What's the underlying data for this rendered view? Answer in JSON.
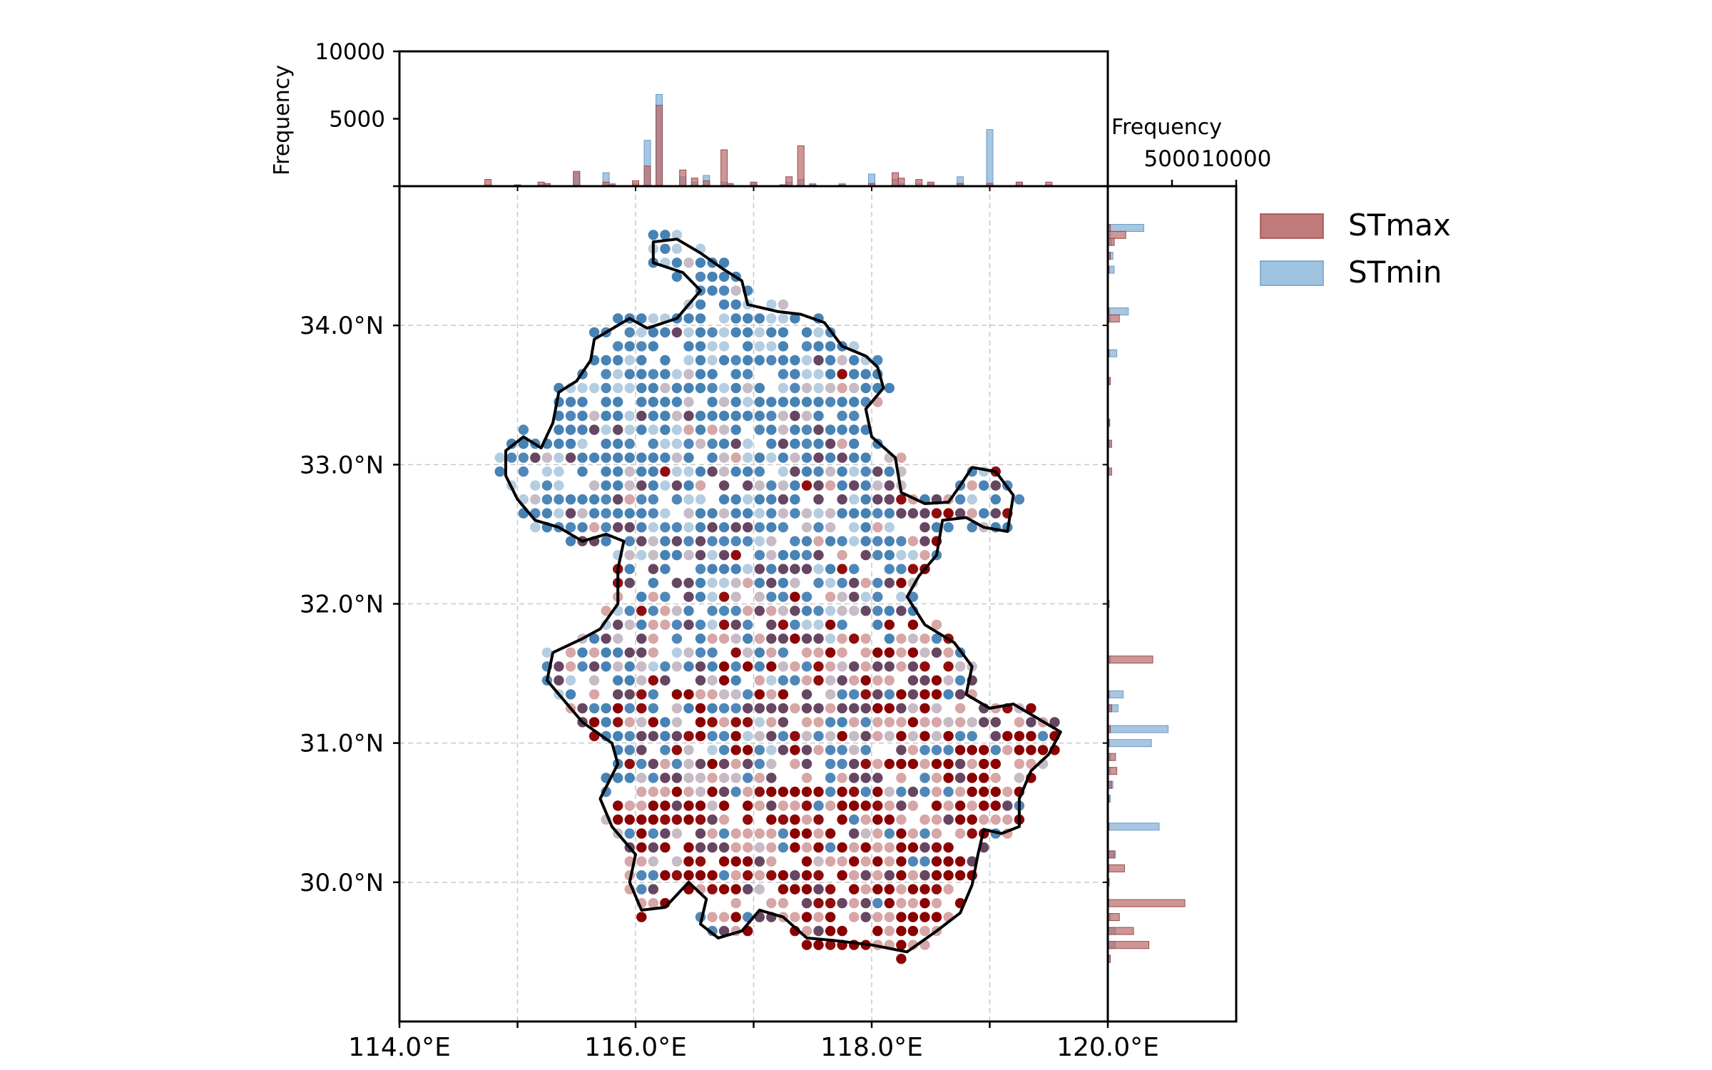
{
  "chart_data": {
    "type": "scatter",
    "colors": {
      "stmax": "#8b0000",
      "stmin": "#4682b4",
      "overlap": "#5e3c58",
      "stmax_bar": "#b86b6b",
      "stmin_bar": "#96bcdc",
      "grid": "#c8c8c8",
      "boundary": "#000000"
    },
    "map": {
      "x_ticks": [
        114,
        116,
        118,
        120
      ],
      "x_tick_labels": [
        "114.0°E",
        "116.0°E",
        "118.0°E",
        "120.0°E"
      ],
      "y_ticks": [
        30,
        31,
        32,
        33,
        34
      ],
      "y_tick_labels": [
        "30.0°N",
        "31.0°N",
        "32.0°N",
        "33.0°N",
        "34.0°N"
      ],
      "xlim": [
        114,
        120
      ],
      "ylim": [
        29.0,
        35.0
      ],
      "grid": true
    },
    "top_hist": {
      "ylabel": "Frequency",
      "y_ticks": [
        5000,
        10000
      ],
      "y_tick_labels": [
        "5000",
        "10000"
      ],
      "ylim": [
        0,
        10000
      ],
      "bins_lon": [
        114.75,
        115.0,
        115.2,
        115.25,
        115.5,
        115.75,
        115.8,
        116.0,
        116.1,
        116.2,
        116.4,
        116.5,
        116.6,
        116.75,
        116.8,
        117.0,
        117.25,
        117.3,
        117.4,
        117.5,
        117.75,
        118.0,
        118.2,
        118.25,
        118.4,
        118.5,
        118.75,
        119.0,
        119.25,
        119.5
      ],
      "stmax": [
        500,
        100,
        300,
        200,
        1100,
        300,
        100,
        400,
        1500,
        6000,
        1200,
        600,
        400,
        2700,
        200,
        300,
        100,
        700,
        3000,
        100,
        100,
        200,
        1000,
        600,
        500,
        300,
        200,
        200,
        300,
        300
      ],
      "stmin": [
        100,
        50,
        100,
        100,
        1000,
        1000,
        200,
        200,
        3400,
        6800,
        700,
        300,
        800,
        300,
        100,
        200,
        100,
        300,
        500,
        200,
        200,
        900,
        500,
        200,
        200,
        200,
        700,
        4200,
        300,
        100
      ]
    },
    "right_hist": {
      "xlabel": "Frequency",
      "x_ticks": [
        5000,
        10000
      ],
      "x_tick_labels": [
        "5000",
        "10000"
      ],
      "xlim": [
        0,
        10000
      ],
      "bins_lat": [
        34.7,
        34.65,
        34.6,
        34.5,
        34.4,
        34.1,
        34.05,
        33.8,
        33.6,
        33.3,
        33.15,
        32.95,
        32.0,
        31.6,
        31.35,
        31.25,
        31.1,
        31.0,
        30.9,
        30.8,
        30.7,
        30.6,
        30.4,
        30.2,
        30.1,
        30.0,
        29.85,
        29.75,
        29.65,
        29.55,
        29.45
      ],
      "stmax": [
        200,
        1400,
        500,
        200,
        100,
        100,
        900,
        100,
        200,
        150,
        300,
        300,
        100,
        3500,
        100,
        300,
        200,
        100,
        600,
        700,
        300,
        100,
        100,
        500,
        1300,
        100,
        6000,
        900,
        2000,
        3200,
        200
      ],
      "stmin": [
        2800,
        200,
        300,
        400,
        500,
        1600,
        200,
        700,
        100,
        100,
        150,
        100,
        100,
        200,
        1200,
        800,
        4700,
        3400,
        200,
        200,
        400,
        200,
        4000,
        600,
        100,
        100,
        100,
        200,
        600,
        600,
        100
      ]
    },
    "legend": {
      "position": "upper-right, outside",
      "entries": [
        {
          "label": "STmax",
          "color": "#b86b6b"
        },
        {
          "label": "STmin",
          "color": "#96bcdc"
        }
      ]
    }
  }
}
